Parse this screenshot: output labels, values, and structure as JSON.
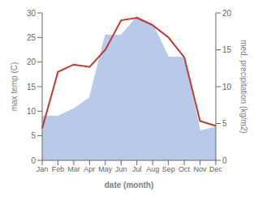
{
  "chart_data": {
    "type": "line",
    "categories": [
      "Jan",
      "Feb",
      "Mar",
      "Apr",
      "May",
      "Jun",
      "Jul",
      "Aug",
      "Sep",
      "Oct",
      "Nov",
      "Dec"
    ],
    "xlabel": "date (month)",
    "ylabel": "max temp (C)",
    "y2label": "med. precipitation (kg/m2)",
    "ylim": [
      0,
      30
    ],
    "yticks": [
      0,
      5,
      10,
      15,
      20,
      25,
      30
    ],
    "y2lim": [
      0,
      20
    ],
    "y2ticks": [
      0,
      5,
      10,
      15,
      20
    ],
    "grid": false,
    "series": [
      {
        "type": "area",
        "color": "#b8c9ea",
        "axis": "y2",
        "values": [
          6.0,
          6.0,
          7.0,
          8.5,
          17.0,
          17.0,
          19.5,
          18.5,
          14.0,
          14.0,
          4.0,
          4.5
        ]
      },
      {
        "type": "line",
        "color": "#c0392b",
        "values": [
          6.5,
          18.0,
          19.5,
          19.0,
          22.5,
          28.5,
          29.0,
          27.5,
          25.0,
          21.0,
          8.0,
          7.0
        ]
      }
    ]
  }
}
